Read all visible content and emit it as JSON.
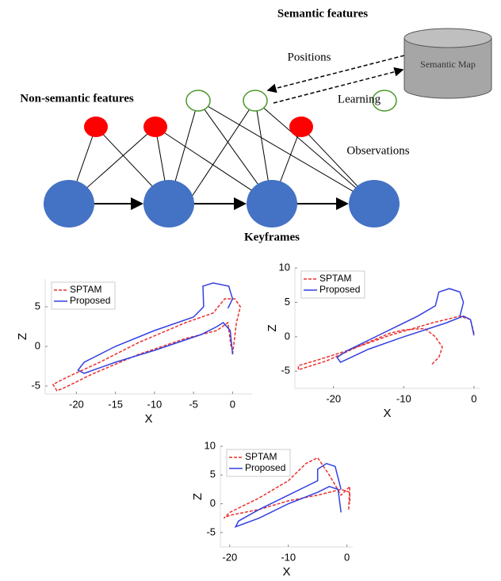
{
  "diagram": {
    "semantic_title": "Semantic features",
    "positions": "Positions",
    "map": "Semantic Map",
    "learning": "Learning",
    "non_semantic_title": "Non-semantic features",
    "observations": "Observations",
    "keyframes": "Keyframes"
  },
  "chart_data": [
    {
      "type": "line",
      "xlabel": "X",
      "ylabel": "Z",
      "xlim": [
        -24,
        2.5
      ],
      "ylim": [
        -6,
        8.5
      ],
      "xticks": [
        -20,
        -15,
        -10,
        -5,
        0
      ],
      "yticks": [
        -5,
        0,
        5
      ],
      "legend": "upper left",
      "series": [
        {
          "name": "SPTAM",
          "color": "#e8312e",
          "dashed": true,
          "x": [
            0,
            0.5,
            1,
            0.3,
            -1,
            -2.5,
            -6,
            -12,
            -17,
            -21,
            -23,
            -22.5,
            -21.5,
            -18,
            -12,
            -6,
            -2,
            -0.6,
            -0.2
          ],
          "values": [
            -1,
            3,
            5,
            6,
            6,
            4.2,
            3,
            0.5,
            -2,
            -3.8,
            -4.8,
            -5.6,
            -5.2,
            -3.5,
            -1,
            1,
            2,
            3,
            0
          ]
        },
        {
          "name": "Proposed",
          "color": "#3340e0",
          "dashed": false,
          "x": [
            0,
            -0.3,
            -1.2,
            -2,
            -4,
            -10,
            -15,
            -19,
            -19.8,
            -19,
            -15,
            -10,
            -5,
            -3.7,
            -3.8,
            -2.5,
            -0.5,
            0,
            -0.6
          ],
          "values": [
            -1,
            2,
            3,
            2.5,
            1.5,
            -0.5,
            -2,
            -3.4,
            -3,
            -2,
            0,
            2,
            3.7,
            5,
            7.6,
            8,
            7.6,
            6,
            4.8
          ]
        }
      ]
    },
    {
      "type": "line",
      "xlabel": "X",
      "ylabel": "Z",
      "xlim": [
        -25.5,
        0.8
      ],
      "ylim": [
        -7.5,
        10
      ],
      "xticks": [
        -20,
        -10,
        0
      ],
      "yticks": [
        -5,
        0,
        5,
        10
      ],
      "legend": "upper left",
      "series": [
        {
          "name": "SPTAM",
          "color": "#e8312e",
          "dashed": true,
          "x": [
            0,
            -0.5,
            -2,
            -6,
            -12,
            -18,
            -22,
            -25,
            -25,
            -21,
            -16,
            -12,
            -10,
            -7,
            -5.5,
            -4.5,
            -5,
            -6
          ],
          "values": [
            0.5,
            2.5,
            3,
            2,
            0.2,
            -2,
            -3.3,
            -4.2,
            -4.8,
            -3.5,
            -1.2,
            0.5,
            1,
            1.2,
            0,
            -1.5,
            -3,
            -4
          ]
        },
        {
          "name": "Proposed",
          "color": "#3340e0",
          "dashed": false,
          "x": [
            0,
            -0.5,
            -1.5,
            -4,
            -10,
            -15,
            -19,
            -19.5,
            -18,
            -13,
            -8,
            -5.5,
            -5,
            -3.5,
            -2,
            -1.5,
            -2
          ],
          "values": [
            0.2,
            2.5,
            3,
            2,
            0,
            -1.8,
            -3.7,
            -3,
            -2,
            0.5,
            3,
            4.5,
            6.5,
            7,
            6.5,
            5,
            3
          ]
        }
      ]
    },
    {
      "type": "line",
      "xlabel": "X",
      "ylabel": "Z",
      "xlim": [
        -21.6,
        1
      ],
      "ylim": [
        -7.5,
        10
      ],
      "xticks": [
        -20,
        -10,
        0
      ],
      "yticks": [
        -5,
        0,
        5,
        10
      ],
      "legend": "upper left",
      "series": [
        {
          "name": "SPTAM",
          "color": "#e8312e",
          "dashed": true,
          "x": [
            0.3,
            0.5,
            -1,
            -3,
            -5,
            -7,
            -10,
            -15,
            -20,
            -21,
            -20,
            -15,
            -10,
            -5,
            -1,
            0.5,
            0.5
          ],
          "values": [
            -1,
            3,
            1.5,
            5,
            8,
            7,
            4,
            1,
            -1.5,
            -2.5,
            -2,
            -1,
            0.5,
            1.5,
            2.5,
            2,
            0
          ]
        },
        {
          "name": "Proposed",
          "color": "#3340e0",
          "dashed": false,
          "x": [
            -1,
            -1.5,
            -3,
            -5,
            -10,
            -15,
            -19,
            -18.5,
            -15,
            -10,
            -5,
            -5,
            -3.5,
            -2,
            -1.5,
            -1
          ],
          "values": [
            -1.5,
            2.5,
            3,
            2,
            0,
            -2.5,
            -4,
            -3,
            -1,
            1.5,
            4,
            6,
            7,
            6.5,
            4.5,
            2.5
          ]
        }
      ]
    }
  ]
}
